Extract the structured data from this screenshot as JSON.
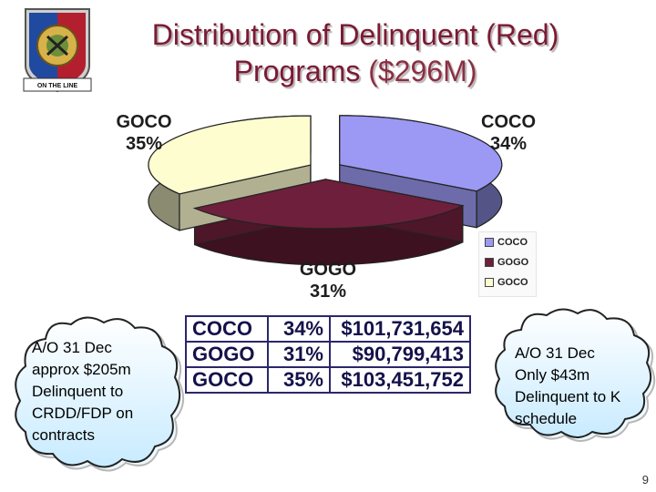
{
  "title": {
    "main": "Distribution of Delinquent (Red)",
    "line2": "Programs",
    "amount": "($296M)"
  },
  "logo": {
    "icon": "army-insignia-icon",
    "banner": "ON THE LINE"
  },
  "chart_data": {
    "type": "pie",
    "title": "Distribution of Delinquent (Red) Programs ($296M)",
    "categories": [
      "COCO",
      "GOGO",
      "GOCO"
    ],
    "values": [
      34,
      31,
      35
    ],
    "value_unit": "%",
    "colors": [
      "#9b99f3",
      "#6e1f3b",
      "#fdfdd0"
    ],
    "slice_labels": [
      {
        "name": "COCO",
        "pct": "34%"
      },
      {
        "name": "GOGO",
        "pct": "31%"
      },
      {
        "name": "GOCO",
        "pct": "35%"
      }
    ],
    "legend": {
      "placement": "right",
      "entries": [
        "COCO",
        "GOGO",
        "GOCO"
      ]
    }
  },
  "table": {
    "rows": [
      {
        "name": "COCO",
        "pct": "34%",
        "amount": "$101,731,654"
      },
      {
        "name": "GOGO",
        "pct": "31%",
        "amount": "$90,799,413"
      },
      {
        "name": "GOCO",
        "pct": "35%",
        "amount": "$103,451,752"
      }
    ]
  },
  "notes": {
    "left": [
      "A/O 31 Dec",
      "approx $205m",
      "Delinquent to",
      "CRDD/FDP on",
      "contracts"
    ],
    "right": [
      "A/O 31 Dec",
      "Only $43m",
      "Delinquent to K",
      "schedule"
    ]
  },
  "page_number": "9"
}
